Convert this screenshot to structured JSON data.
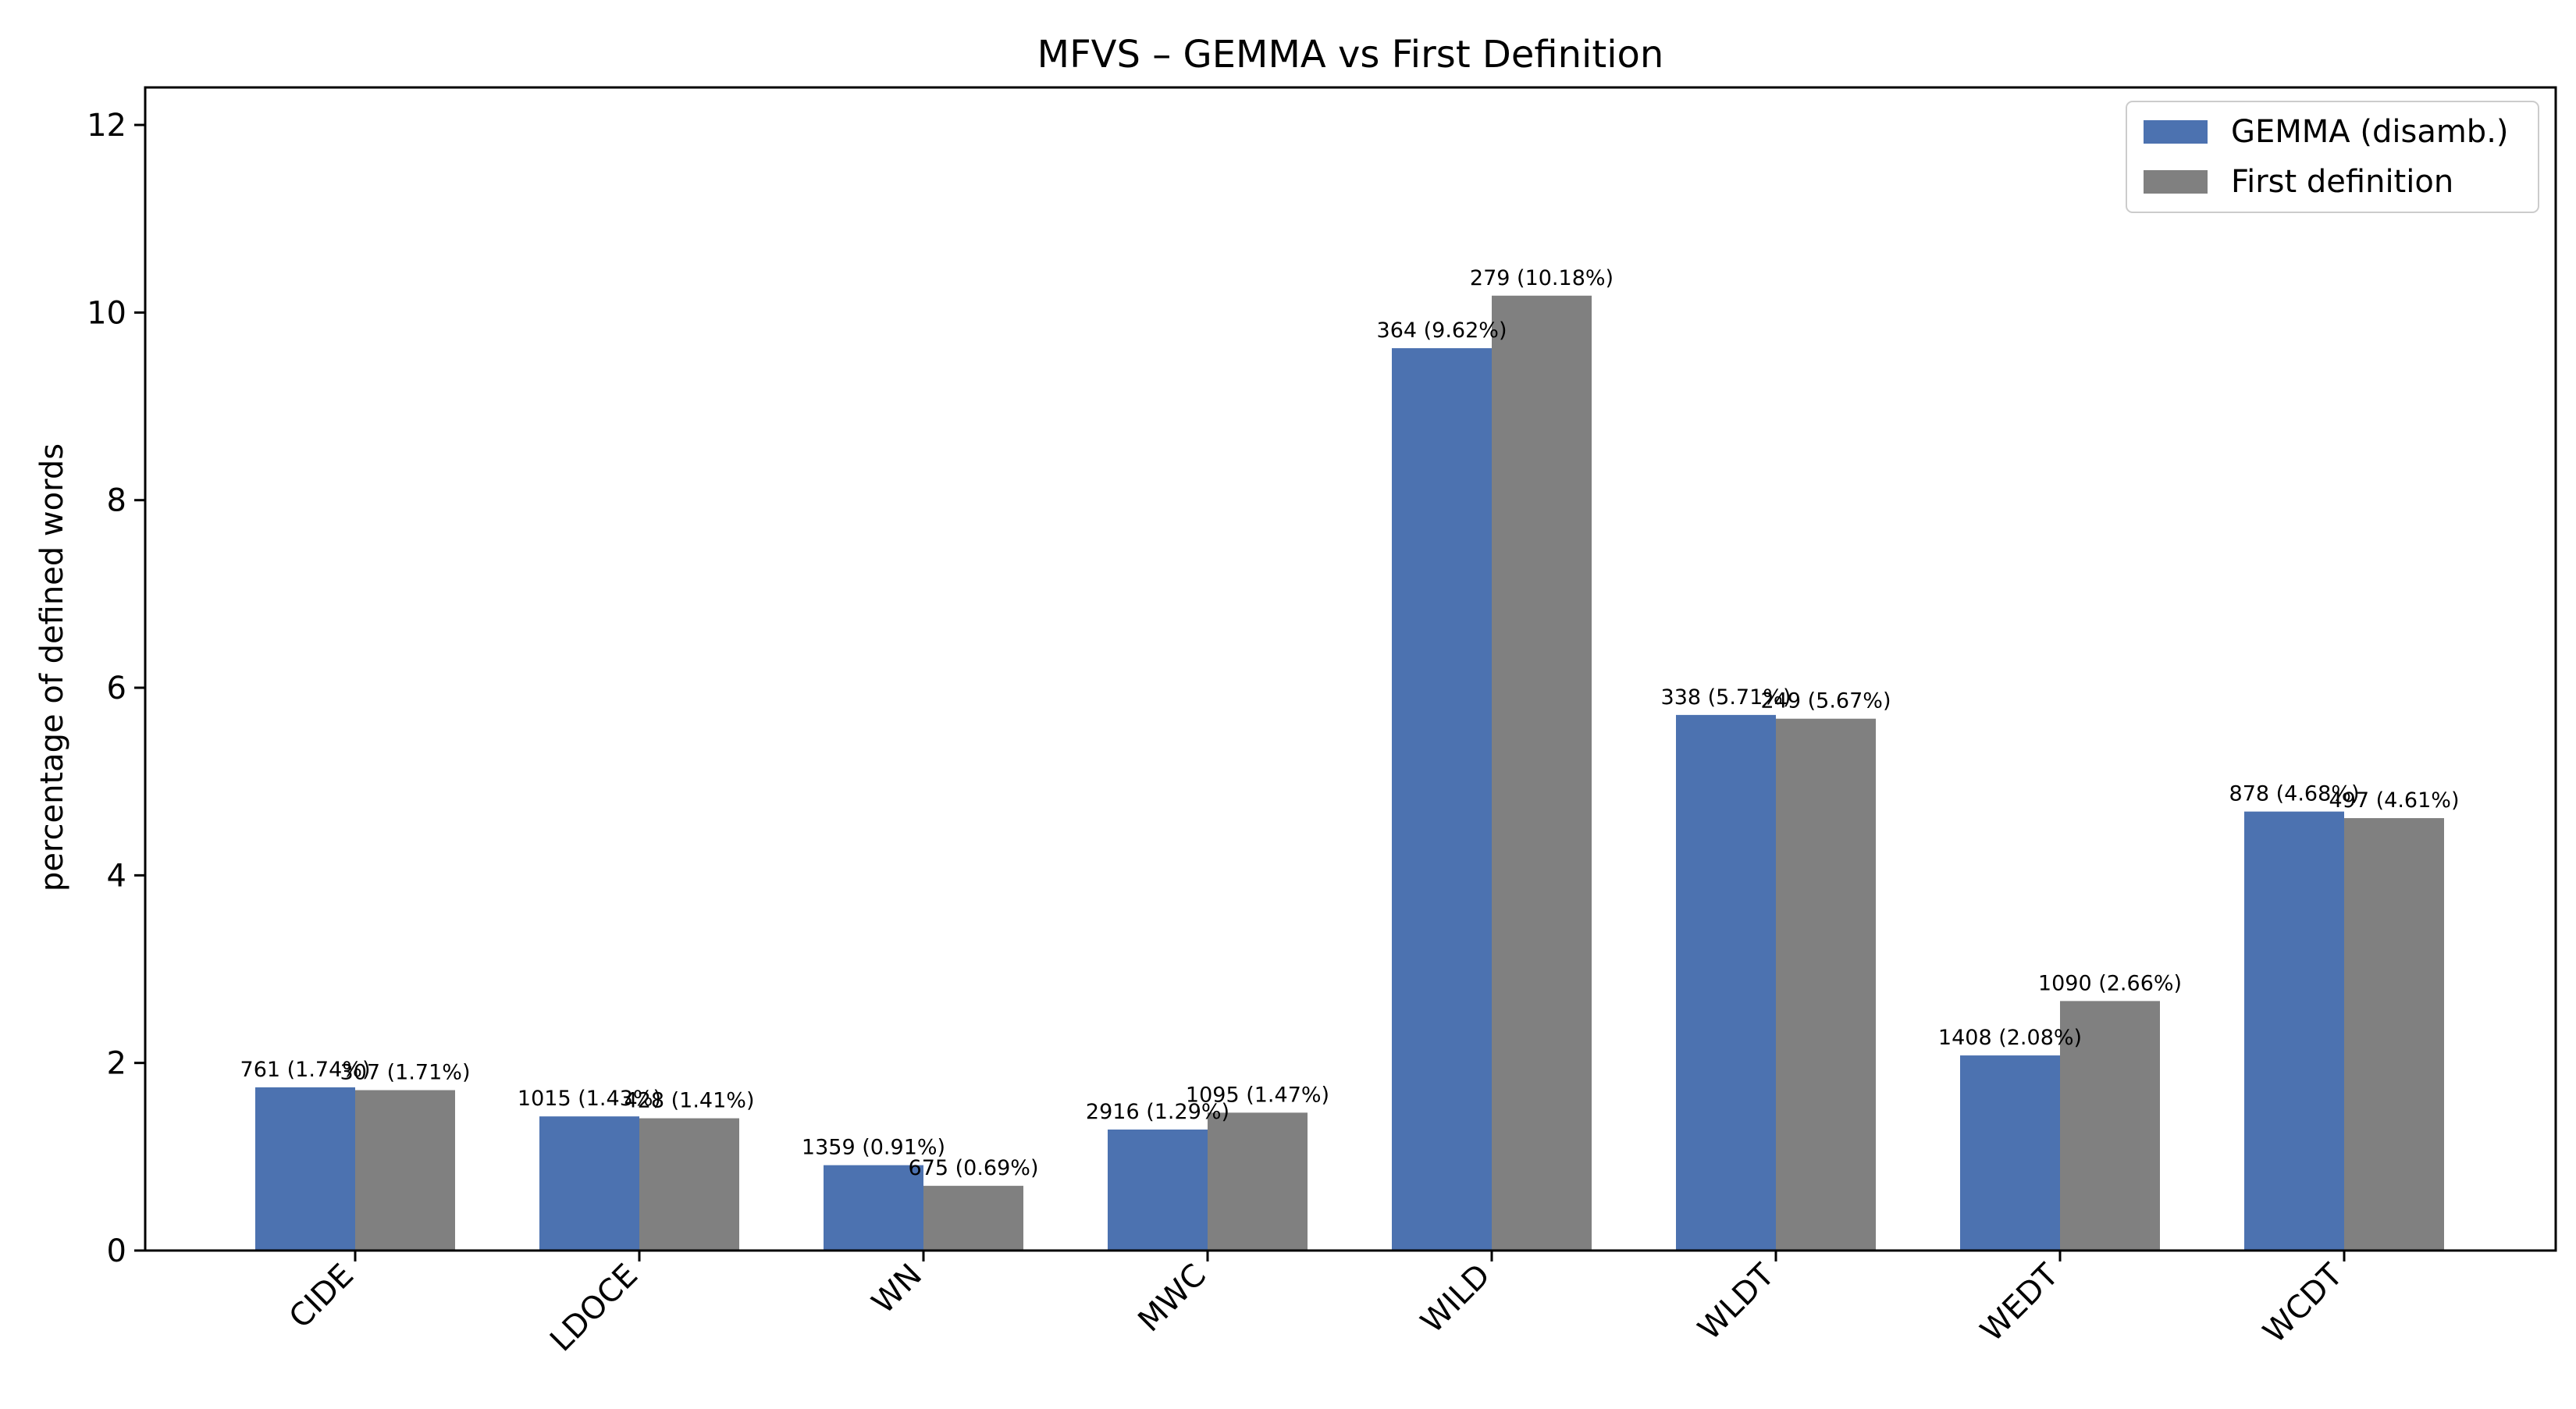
{
  "chart_data": {
    "type": "bar",
    "title": "MFVS – GEMMA vs First Definition",
    "xlabel": "",
    "ylabel": "percentage of defined words",
    "ylim": [
      0,
      12.4
    ],
    "yticks": [
      0,
      2,
      4,
      6,
      8,
      10,
      12
    ],
    "categories": [
      "CIDE",
      "LDOCE",
      "WN",
      "MWC",
      "WILD",
      "WLDT",
      "WEDT",
      "WCDT"
    ],
    "series": [
      {
        "name": "GEMMA (disamb.)",
        "color": "#4c72b0",
        "values": [
          1.74,
          1.43,
          0.91,
          1.29,
          9.62,
          5.71,
          2.08,
          4.68
        ],
        "labels": [
          "761 (1.74%)",
          "1015 (1.43%)",
          "1359 (0.91%)",
          "2916 (1.29%)",
          "364 (9.62%)",
          "338 (5.71%)",
          "1408 (2.08%)",
          "878 (4.68%)"
        ]
      },
      {
        "name": "First definition",
        "color": "#808080",
        "values": [
          1.71,
          1.41,
          0.69,
          1.47,
          10.18,
          5.67,
          2.66,
          4.61
        ],
        "labels": [
          "307 (1.71%)",
          "428 (1.41%)",
          "675 (0.69%)",
          "1095 (1.47%)",
          "279 (10.18%)",
          "249 (5.67%)",
          "1090 (2.66%)",
          "497 (4.61%)"
        ]
      }
    ],
    "legend_position": "top-right",
    "grid": false
  }
}
